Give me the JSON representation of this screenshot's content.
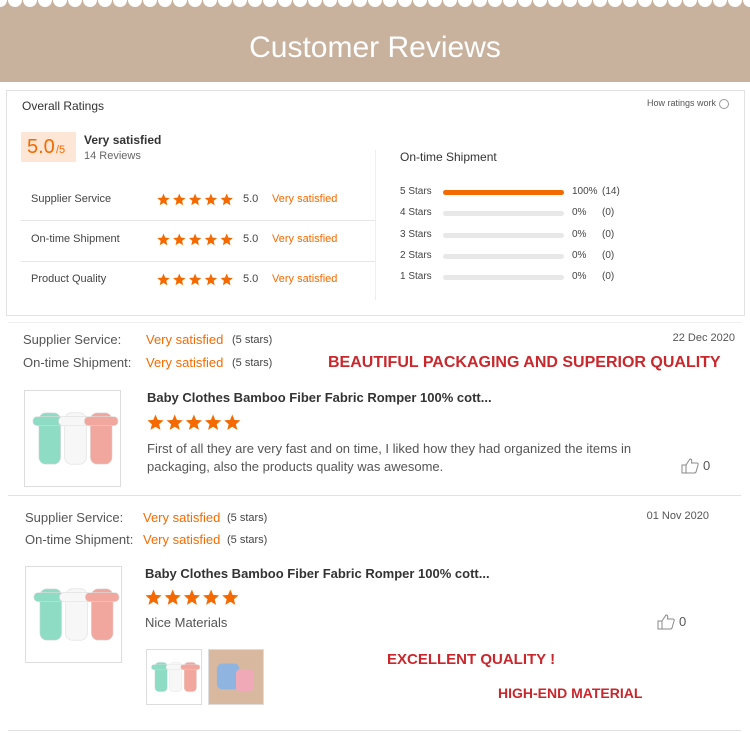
{
  "header": {
    "title": "Customer Reviews"
  },
  "overall": {
    "heading": "Overall Ratings",
    "help_link": "How ratings work",
    "score": "5.0",
    "score_suffix": "/5",
    "verdict": "Very satisfied",
    "review_count": "14 Reviews",
    "criteria": [
      {
        "label": "Supplier Service",
        "score": "5.0",
        "verdict": "Very satisfied"
      },
      {
        "label": "On-time Shipment",
        "score": "5.0",
        "verdict": "Very satisfied"
      },
      {
        "label": "Product Quality",
        "score": "5.0",
        "verdict": "Very satisfied"
      }
    ],
    "breakdown_title": "On-time Shipment",
    "breakdown": [
      {
        "label": "5 Stars",
        "percent": "100%",
        "count": "(14)"
      },
      {
        "label": "4 Stars",
        "percent": "0%",
        "count": "(0)"
      },
      {
        "label": "3 Stars",
        "percent": "0%",
        "count": "(0)"
      },
      {
        "label": "2 Stars",
        "percent": "0%",
        "count": "(0)"
      },
      {
        "label": "1 Stars",
        "percent": "0%",
        "count": "(0)"
      }
    ]
  },
  "reviews": [
    {
      "supplier_label": "Supplier Service:",
      "supplier_verdict": "Very satisfied",
      "supplier_stars": "(5 stars)",
      "shipment_label": "On-time Shipment:",
      "shipment_verdict": "Very satisfied",
      "shipment_stars": "(5 stars)",
      "date": "22 Dec 2020",
      "product_title": "Baby Clothes Bamboo Fiber Fabric Romper 100% cott...",
      "comment": "First of all they are very fast and on time, I liked how they had organized the items in packaging, also the products quality was awesome.",
      "likes": "0",
      "captions": [
        "BEAUTIFUL PACKAGING AND SUPERIOR QUALITY"
      ]
    },
    {
      "supplier_label": "Supplier Service:",
      "supplier_verdict": "Very satisfied",
      "supplier_stars": "(5 stars)",
      "shipment_label": "On-time Shipment:",
      "shipment_verdict": "Very satisfied",
      "shipment_stars": "(5 stars)",
      "date": "01 Nov 2020",
      "product_title": "Baby Clothes Bamboo Fiber Fabric Romper 100% cott...",
      "comment": "Nice Materials",
      "likes": "0",
      "captions": [
        "EXCELLENT QUALITY !",
        "HIGH-END MATERIAL"
      ]
    }
  ]
}
